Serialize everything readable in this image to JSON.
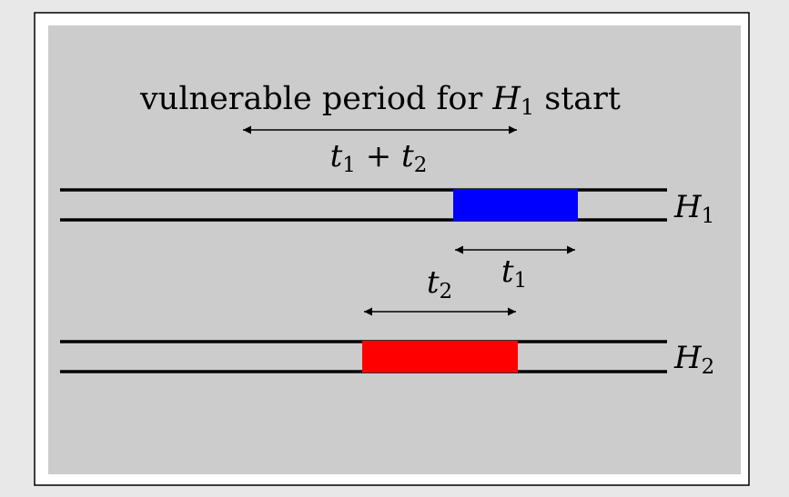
{
  "header": {
    "prefix": "vulnerable period for ",
    "var": "H",
    "sub": "1",
    "suffix": " start"
  },
  "span_label": {
    "a": "t",
    "a_sub": "1",
    "op": " + ",
    "b": "t",
    "b_sub": "2"
  },
  "t1_label": {
    "var": "t",
    "sub": "1"
  },
  "t2_label": {
    "var": "t",
    "sub": "2"
  },
  "h1_label": {
    "var": "H",
    "sub": "1"
  },
  "h2_label": {
    "var": "H",
    "sub": "2"
  },
  "colors": {
    "page": "#e8e8e8",
    "frame_fill": "#ffffff",
    "panel": "#cccccc",
    "h1_block": "#0000ff",
    "h2_block": "#ff0000",
    "line": "#000000"
  }
}
